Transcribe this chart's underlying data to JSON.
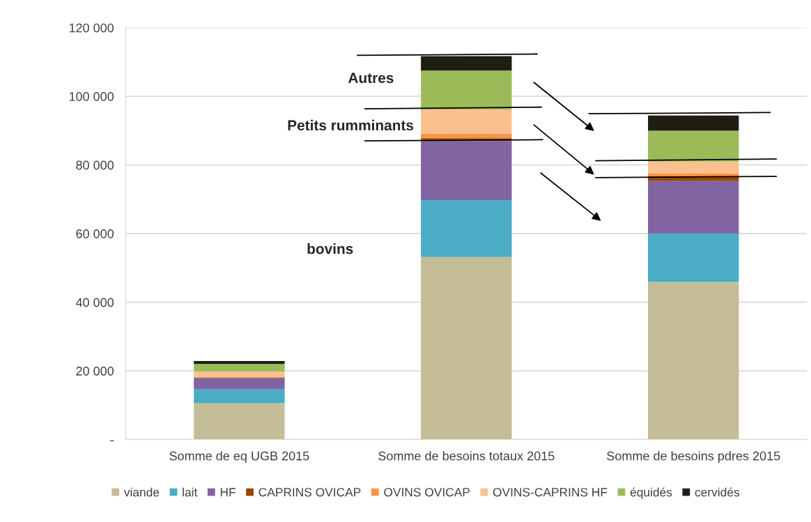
{
  "chart_data": {
    "type": "bar",
    "stacked": true,
    "categories": [
      "Somme de eq UGB 2015",
      "Somme de besoins totaux 2015",
      "Somme de besoins pdres 2015"
    ],
    "series": [
      {
        "name": "viande",
        "color": "#c4bd97",
        "values": [
          10600,
          53200,
          45900
        ]
      },
      {
        "name": "lait",
        "color": "#4bacc6",
        "values": [
          4000,
          16600,
          14100
        ]
      },
      {
        "name": "HF",
        "color": "#8064a2",
        "values": [
          3300,
          17200,
          15300
        ]
      },
      {
        "name": "CAPRINS OVICAP",
        "color": "#974706",
        "values": [
          200,
          800,
          1400
        ]
      },
      {
        "name": "OVINS OVICAP",
        "color": "#f79646",
        "values": [
          200,
          1300,
          900
        ]
      },
      {
        "name": "OVINS-CAPRINS HF",
        "color": "#fac090",
        "values": [
          1500,
          7100,
          3400
        ]
      },
      {
        "name": "équidés",
        "color": "#9bbb59",
        "values": [
          2200,
          11300,
          9000
        ]
      },
      {
        "name": "cervidés",
        "color": "#1f1d14",
        "values": [
          900,
          4200,
          4400
        ]
      }
    ],
    "ylim": [
      0,
      120000
    ],
    "yticks": [
      {
        "value": 0,
        "label": "-"
      },
      {
        "value": 20000,
        "label": "20 000"
      },
      {
        "value": 40000,
        "label": "40 000"
      },
      {
        "value": 60000,
        "label": "60 000"
      },
      {
        "value": 80000,
        "label": "80 000"
      },
      {
        "value": 100000,
        "label": "100 000"
      },
      {
        "value": 120000,
        "label": "120 000"
      }
    ],
    "grid": "y",
    "legend": "bottom",
    "annotations": [
      "Autres",
      "Petits rumminants",
      "bovins"
    ]
  }
}
